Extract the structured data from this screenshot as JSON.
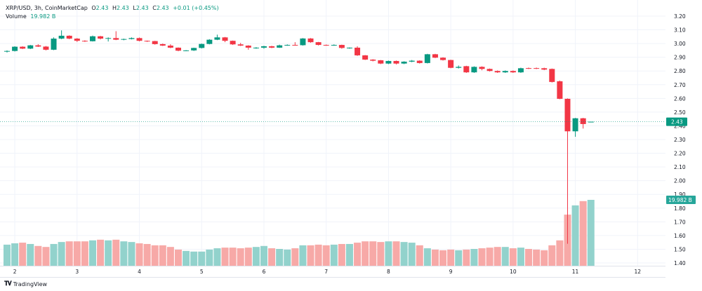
{
  "legend": {
    "symbol": "XRP/USD, 3h, CoinMarketCap",
    "o_label": "O",
    "o": "2.43",
    "h_label": "H",
    "h": "2.43",
    "l_label": "L",
    "l": "2.43",
    "c_label": "C",
    "c": "2.43",
    "change": "+0.01 (+0.45%)",
    "volume_label": "Volume",
    "volume": "19.982 B"
  },
  "brand": {
    "name": "TradingView",
    "logo": "TV"
  },
  "colors": {
    "up": "#089981",
    "down": "#f23645",
    "vol_up": "#92d2cc",
    "vol_down": "#f7a9a7",
    "grid": "#f0f3fa"
  },
  "chart_data": {
    "type": "candlestick",
    "interval": "3h",
    "x_ticks": [
      "2",
      "3",
      "4",
      "5",
      "6",
      "7",
      "8",
      "9",
      "10",
      "11",
      "12"
    ],
    "y_ticks": [
      "3.20",
      "3.10",
      "3.00",
      "2.90",
      "2.80",
      "2.70",
      "2.60",
      "2.50",
      "2.40",
      "2.30",
      "2.20",
      "2.10",
      "2.00",
      "1.90",
      "1.80",
      "1.70",
      "1.60",
      "1.50",
      "1.40"
    ],
    "ylim": [
      1.4,
      3.2
    ],
    "grid": true,
    "last_price_label": "2.43",
    "last_volume_label": "19.982 B",
    "volume_unit": "B",
    "candles": [
      [
        2.946,
        2.95,
        2.935,
        2.946
      ],
      [
        2.946,
        2.98,
        2.942,
        2.977
      ],
      [
        2.977,
        2.98,
        2.96,
        2.963
      ],
      [
        2.963,
        2.99,
        2.96,
        2.987
      ],
      [
        2.987,
        2.995,
        2.975,
        2.978
      ],
      [
        2.978,
        2.982,
        2.95,
        2.955
      ],
      [
        2.955,
        3.045,
        2.952,
        3.036
      ],
      [
        3.036,
        3.096,
        3.032,
        3.057
      ],
      [
        3.057,
        3.06,
        3.032,
        3.036
      ],
      [
        3.036,
        3.04,
        3.012,
        3.02
      ],
      [
        3.02,
        3.024,
        3.012,
        3.017
      ],
      [
        3.017,
        3.058,
        3.015,
        3.053
      ],
      [
        3.053,
        3.056,
        3.03,
        3.036
      ],
      [
        3.036,
        3.045,
        3.015,
        3.04
      ],
      [
        3.04,
        3.09,
        3.025,
        3.028
      ],
      [
        3.028,
        3.036,
        3.024,
        3.033
      ],
      [
        3.033,
        3.045,
        3.03,
        3.04
      ],
      [
        3.04,
        3.044,
        3.016,
        3.02
      ],
      [
        3.02,
        3.022,
        3.012,
        3.018
      ],
      [
        3.018,
        3.02,
        2.992,
        2.996
      ],
      [
        2.996,
        3.0,
        2.982,
        2.985
      ],
      [
        2.985,
        2.995,
        2.966,
        2.97
      ],
      [
        2.97,
        2.972,
        2.944,
        2.948
      ],
      [
        2.948,
        2.952,
        2.944,
        2.95
      ],
      [
        2.95,
        2.97,
        2.946,
        2.968
      ],
      [
        2.968,
        3.0,
        2.964,
        2.997
      ],
      [
        2.997,
        3.032,
        2.994,
        3.028
      ],
      [
        3.028,
        3.065,
        3.025,
        3.045
      ],
      [
        3.045,
        3.048,
        3.01,
        3.02
      ],
      [
        3.02,
        3.022,
        2.99,
        2.994
      ],
      [
        2.994,
        3.005,
        2.982,
        2.985
      ],
      [
        2.985,
        2.988,
        2.955,
        2.97
      ],
      [
        2.97,
        2.974,
        2.962,
        2.97
      ],
      [
        2.97,
        2.984,
        2.962,
        2.98
      ],
      [
        2.98,
        2.984,
        2.966,
        2.97
      ],
      [
        2.97,
        2.992,
        2.968,
        2.987
      ],
      [
        2.987,
        2.994,
        2.984,
        2.99
      ],
      [
        2.99,
        3.01,
        2.985,
        2.988
      ],
      [
        2.988,
        3.04,
        2.985,
        3.037
      ],
      [
        3.037,
        3.04,
        3.006,
        3.01
      ],
      [
        3.01,
        3.012,
        2.986,
        2.99
      ],
      [
        2.99,
        2.993,
        2.984,
        2.987
      ],
      [
        2.987,
        2.994,
        2.984,
        2.99
      ],
      [
        2.99,
        2.992,
        2.962,
        2.968
      ],
      [
        2.966,
        2.972,
        2.962,
        2.97
      ],
      [
        2.97,
        2.98,
        2.91,
        2.914
      ],
      [
        2.914,
        2.916,
        2.88,
        2.883
      ],
      [
        2.883,
        2.886,
        2.87,
        2.875
      ],
      [
        2.878,
        2.88,
        2.85,
        2.854
      ],
      [
        2.854,
        2.876,
        2.85,
        2.873
      ],
      [
        2.873,
        2.876,
        2.848,
        2.854
      ],
      [
        2.854,
        2.871,
        2.85,
        2.868
      ],
      [
        2.868,
        2.88,
        2.864,
        2.875
      ],
      [
        2.875,
        2.878,
        2.854,
        2.858
      ],
      [
        2.858,
        2.925,
        2.855,
        2.922
      ],
      [
        2.922,
        2.925,
        2.894,
        2.897
      ],
      [
        2.897,
        2.9,
        2.876,
        2.88
      ],
      [
        2.88,
        2.882,
        2.82,
        2.823
      ],
      [
        2.823,
        2.84,
        2.818,
        2.83
      ],
      [
        2.835,
        2.838,
        2.786,
        2.79
      ],
      [
        2.79,
        2.834,
        2.786,
        2.83
      ],
      [
        2.83,
        2.834,
        2.805,
        2.815
      ],
      [
        2.815,
        2.818,
        2.796,
        2.8
      ],
      [
        2.8,
        2.804,
        2.786,
        2.79
      ],
      [
        2.79,
        2.804,
        2.786,
        2.8
      ],
      [
        2.8,
        2.804,
        2.786,
        2.79
      ],
      [
        2.79,
        2.824,
        2.786,
        2.82
      ],
      [
        2.821,
        2.825,
        2.814,
        2.82
      ],
      [
        2.821,
        2.825,
        2.814,
        2.82
      ],
      [
        2.82,
        2.824,
        2.806,
        2.81
      ],
      [
        2.815,
        2.818,
        2.716,
        2.72
      ],
      [
        2.725,
        2.73,
        2.594,
        2.597
      ],
      [
        2.597,
        2.6,
        1.54,
        2.36
      ],
      [
        2.36,
        2.458,
        2.32,
        2.455
      ],
      [
        2.455,
        2.458,
        2.38,
        2.413
      ],
      [
        2.43,
        2.43,
        2.43,
        2.43
      ]
    ],
    "volume": [
      6.4,
      6.8,
      7.0,
      6.6,
      6.0,
      5.7,
      6.6,
      7.2,
      7.4,
      7.4,
      7.4,
      7.7,
      7.9,
      7.7,
      7.9,
      7.4,
      7.2,
      6.8,
      6.6,
      6.2,
      6.2,
      5.7,
      4.9,
      4.5,
      4.3,
      4.3,
      4.9,
      5.3,
      5.5,
      5.5,
      5.3,
      5.5,
      5.7,
      6.0,
      5.3,
      5.1,
      4.9,
      5.3,
      6.2,
      6.2,
      6.4,
      6.2,
      6.4,
      6.6,
      6.6,
      7.0,
      7.4,
      7.4,
      7.2,
      7.4,
      7.4,
      7.2,
      7.0,
      6.2,
      5.3,
      4.9,
      4.7,
      4.9,
      4.7,
      4.9,
      5.1,
      5.3,
      5.5,
      5.7,
      5.7,
      5.3,
      5.5,
      5.1,
      4.9,
      4.7,
      6.2,
      7.7,
      15.5,
      18.3,
      19.6,
      19.982
    ]
  }
}
